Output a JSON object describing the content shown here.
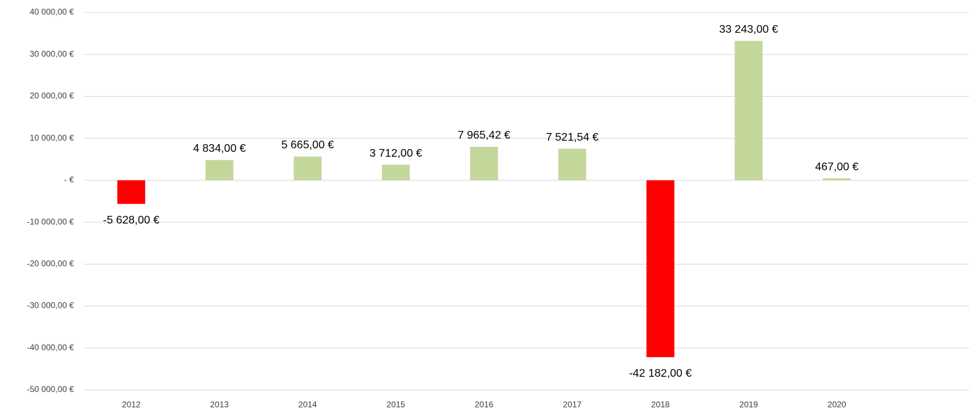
{
  "chart_data": {
    "type": "bar",
    "categories": [
      "2012",
      "2013",
      "2014",
      "2015",
      "2016",
      "2017",
      "2018",
      "2019",
      "2020",
      null
    ],
    "values": [
      -5628,
      4834,
      5665,
      3712,
      7965.42,
      7521.54,
      -42182,
      33243,
      467,
      null
    ],
    "value_labels": [
      "-5 628,00 €",
      "4 834,00 €",
      "5 665,00 €",
      "3 712,00 €",
      "7 965,42 €",
      "7 521,54 €",
      "-42 182,00 €",
      "33 243,00 €",
      "467,00 €",
      null
    ],
    "colors": [
      "#ff0000",
      "#c4d79b",
      "#c4d79b",
      "#c4d79b",
      "#c4d79b",
      "#c4d79b",
      "#ff0000",
      "#c4d79b",
      "#c4d79b",
      null
    ],
    "ylim": [
      -50000,
      40000
    ],
    "yticks": [
      {
        "value": -50000,
        "label": "-50 000,00 €"
      },
      {
        "value": -40000,
        "label": "-40 000,00 €"
      },
      {
        "value": -30000,
        "label": "-30 000,00 €"
      },
      {
        "value": -20000,
        "label": "-20 000,00 €"
      },
      {
        "value": -10000,
        "label": "-10 000,00 €"
      },
      {
        "value": 0,
        "label": "-  €"
      },
      {
        "value": 10000,
        "label": "10 000,00 €"
      },
      {
        "value": 20000,
        "label": "20 000,00 €"
      },
      {
        "value": 30000,
        "label": "30 000,00 €"
      },
      {
        "value": 40000,
        "label": "40 000,00 €"
      }
    ],
    "grid": true
  }
}
